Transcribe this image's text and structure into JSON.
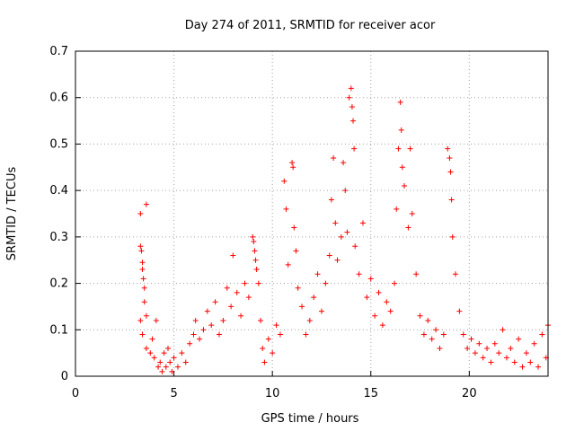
{
  "chart_data": {
    "type": "scatter",
    "title": "Day 274 of 2011, SRMTID for receiver acor",
    "xlabel": "GPS time / hours",
    "ylabel": "SRMTID / TECUs",
    "xlim": [
      0,
      24
    ],
    "ylim": [
      0,
      0.7
    ],
    "xticks": [
      0,
      5,
      10,
      15,
      20
    ],
    "yticks": [
      0,
      0.1,
      0.2,
      0.3,
      0.4,
      0.5,
      0.6,
      0.7
    ],
    "grid": true,
    "marker": "+",
    "colors": {
      "series": "#ff0000",
      "axis": "#000000",
      "grid": "#a0a0a0"
    },
    "series": [
      {
        "name": "SRMTID",
        "points": [
          [
            3.3,
            0.35
          ],
          [
            3.3,
            0.28
          ],
          [
            3.35,
            0.27
          ],
          [
            3.4,
            0.245
          ],
          [
            3.4,
            0.23
          ],
          [
            3.45,
            0.21
          ],
          [
            3.5,
            0.19
          ],
          [
            3.6,
            0.37
          ],
          [
            3.5,
            0.16
          ],
          [
            3.6,
            0.13
          ],
          [
            3.3,
            0.12
          ],
          [
            3.4,
            0.09
          ],
          [
            3.6,
            0.06
          ],
          [
            3.8,
            0.05
          ],
          [
            3.9,
            0.08
          ],
          [
            4.0,
            0.04
          ],
          [
            4.1,
            0.12
          ],
          [
            4.2,
            0.02
          ],
          [
            4.3,
            0.03
          ],
          [
            4.4,
            0.01
          ],
          [
            4.5,
            0.05
          ],
          [
            4.6,
            0.02
          ],
          [
            4.7,
            0.06
          ],
          [
            4.8,
            0.03
          ],
          [
            4.9,
            0.01
          ],
          [
            5.0,
            0.04
          ],
          [
            5.2,
            0.02
          ],
          [
            5.4,
            0.05
          ],
          [
            5.6,
            0.03
          ],
          [
            5.8,
            0.07
          ],
          [
            6.0,
            0.09
          ],
          [
            6.1,
            0.12
          ],
          [
            6.3,
            0.08
          ],
          [
            6.5,
            0.1
          ],
          [
            6.7,
            0.14
          ],
          [
            6.9,
            0.11
          ],
          [
            7.1,
            0.16
          ],
          [
            7.3,
            0.09
          ],
          [
            7.5,
            0.12
          ],
          [
            7.7,
            0.19
          ],
          [
            7.9,
            0.15
          ],
          [
            8.0,
            0.26
          ],
          [
            8.2,
            0.18
          ],
          [
            8.4,
            0.13
          ],
          [
            8.6,
            0.2
          ],
          [
            8.8,
            0.17
          ],
          [
            9.0,
            0.3
          ],
          [
            9.05,
            0.29
          ],
          [
            9.1,
            0.27
          ],
          [
            9.15,
            0.25
          ],
          [
            9.2,
            0.23
          ],
          [
            9.3,
            0.2
          ],
          [
            9.4,
            0.12
          ],
          [
            9.5,
            0.06
          ],
          [
            9.6,
            0.03
          ],
          [
            9.8,
            0.08
          ],
          [
            10.0,
            0.05
          ],
          [
            10.2,
            0.11
          ],
          [
            10.4,
            0.09
          ],
          [
            10.6,
            0.42
          ],
          [
            10.7,
            0.36
          ],
          [
            10.8,
            0.24
          ],
          [
            11.0,
            0.46
          ],
          [
            11.05,
            0.45
          ],
          [
            11.1,
            0.32
          ],
          [
            11.2,
            0.27
          ],
          [
            11.3,
            0.19
          ],
          [
            11.5,
            0.15
          ],
          [
            11.7,
            0.09
          ],
          [
            11.9,
            0.12
          ],
          [
            12.1,
            0.17
          ],
          [
            12.3,
            0.22
          ],
          [
            12.5,
            0.14
          ],
          [
            12.7,
            0.2
          ],
          [
            12.9,
            0.26
          ],
          [
            13.0,
            0.38
          ],
          [
            13.1,
            0.47
          ],
          [
            13.2,
            0.33
          ],
          [
            13.3,
            0.25
          ],
          [
            13.5,
            0.3
          ],
          [
            13.6,
            0.46
          ],
          [
            13.7,
            0.4
          ],
          [
            13.8,
            0.31
          ],
          [
            13.9,
            0.6
          ],
          [
            14.0,
            0.62
          ],
          [
            14.05,
            0.58
          ],
          [
            14.1,
            0.55
          ],
          [
            14.15,
            0.49
          ],
          [
            14.2,
            0.28
          ],
          [
            14.4,
            0.22
          ],
          [
            14.6,
            0.33
          ],
          [
            14.8,
            0.17
          ],
          [
            15.0,
            0.21
          ],
          [
            15.2,
            0.13
          ],
          [
            15.4,
            0.18
          ],
          [
            15.6,
            0.11
          ],
          [
            15.8,
            0.16
          ],
          [
            16.0,
            0.14
          ],
          [
            16.2,
            0.2
          ],
          [
            16.3,
            0.36
          ],
          [
            16.4,
            0.49
          ],
          [
            16.5,
            0.59
          ],
          [
            16.55,
            0.53
          ],
          [
            16.6,
            0.45
          ],
          [
            16.7,
            0.41
          ],
          [
            16.9,
            0.32
          ],
          [
            17.0,
            0.49
          ],
          [
            17.1,
            0.35
          ],
          [
            17.3,
            0.22
          ],
          [
            17.5,
            0.13
          ],
          [
            17.7,
            0.09
          ],
          [
            17.9,
            0.12
          ],
          [
            18.1,
            0.08
          ],
          [
            18.3,
            0.1
          ],
          [
            18.5,
            0.06
          ],
          [
            18.7,
            0.09
          ],
          [
            18.9,
            0.49
          ],
          [
            19.0,
            0.47
          ],
          [
            19.05,
            0.44
          ],
          [
            19.1,
            0.38
          ],
          [
            19.15,
            0.3
          ],
          [
            19.3,
            0.22
          ],
          [
            19.5,
            0.14
          ],
          [
            19.7,
            0.09
          ],
          [
            19.9,
            0.06
          ],
          [
            20.1,
            0.08
          ],
          [
            20.3,
            0.05
          ],
          [
            20.5,
            0.07
          ],
          [
            20.7,
            0.04
          ],
          [
            20.9,
            0.06
          ],
          [
            21.1,
            0.03
          ],
          [
            21.3,
            0.07
          ],
          [
            21.5,
            0.05
          ],
          [
            21.7,
            0.1
          ],
          [
            21.9,
            0.04
          ],
          [
            22.1,
            0.06
          ],
          [
            22.3,
            0.03
          ],
          [
            22.5,
            0.08
          ],
          [
            22.7,
            0.02
          ],
          [
            22.9,
            0.05
          ],
          [
            23.1,
            0.03
          ],
          [
            23.3,
            0.07
          ],
          [
            23.5,
            0.02
          ],
          [
            23.7,
            0.09
          ],
          [
            23.9,
            0.04
          ],
          [
            24.0,
            0.11
          ]
        ]
      }
    ]
  }
}
